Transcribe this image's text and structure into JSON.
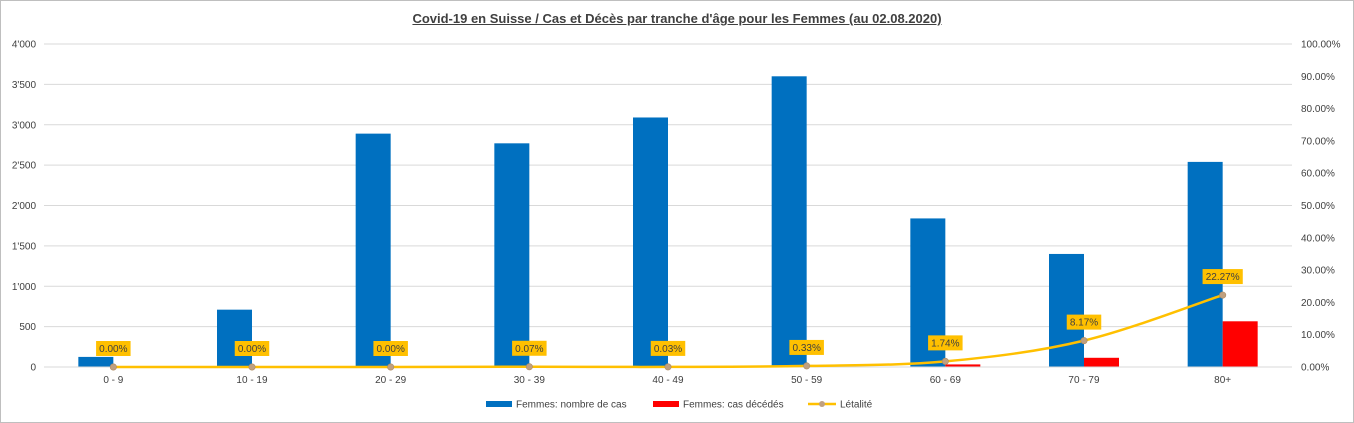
{
  "chart_data": {
    "type": "bar",
    "title": "Covid-19 en Suisse / Cas et Décès par tranche d'âge pour les Femmes (au 02.08.2020)",
    "categories": [
      "0 - 9",
      "10 - 19",
      "20 - 29",
      "30 - 39",
      "40 - 49",
      "50 - 59",
      "60 - 69",
      "70 - 79",
      "80+"
    ],
    "series": [
      {
        "name": "Femmes: nombre de cas",
        "type": "bar",
        "axis": "left",
        "color": "#0070c0",
        "values": [
          125,
          710,
          2890,
          2770,
          3090,
          3600,
          1840,
          1400,
          2540
        ]
      },
      {
        "name": "Femmes: cas décédés",
        "type": "bar",
        "axis": "left",
        "color": "#ff0000",
        "values": [
          0,
          0,
          0,
          2,
          1,
          12,
          32,
          114,
          566
        ]
      },
      {
        "name": "Létalité",
        "type": "line",
        "axis": "right",
        "color": "#ffc000",
        "marker_color": "#c0a080",
        "values": [
          0.0,
          0.0,
          0.0,
          0.07,
          0.03,
          0.33,
          1.74,
          8.17,
          22.27
        ],
        "labels": [
          "0.00%",
          "0.00%",
          "0.00%",
          "0.07%",
          "0.03%",
          "0.33%",
          "1.74%",
          "8.17%",
          "22.27%"
        ]
      }
    ],
    "y_left": {
      "ylim": [
        0,
        4000
      ],
      "ticks": [
        0,
        500,
        1000,
        1500,
        2000,
        2500,
        3000,
        3500,
        4000
      ],
      "tick_labels": [
        "0",
        "500",
        "1'000",
        "1'500",
        "2'000",
        "2'500",
        "3'000",
        "3'500",
        "4'000"
      ]
    },
    "y_right": {
      "ylim": [
        0,
        100
      ],
      "tick_labels": [
        "0.00%",
        "10.00%",
        "20.00%",
        "30.00%",
        "40.00%",
        "50.00%",
        "60.00%",
        "70.00%",
        "80.00%",
        "90.00%",
        "100.00%"
      ]
    },
    "grid": true,
    "legend_position": "bottom"
  }
}
